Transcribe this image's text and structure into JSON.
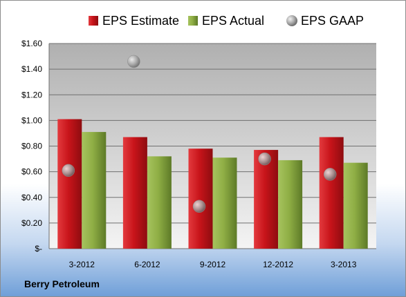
{
  "company": "Berry Petroleum",
  "chart_data": {
    "type": "bar",
    "title": "",
    "xlabel": "",
    "ylabel": "",
    "categories": [
      "3-2012",
      "6-2012",
      "9-2012",
      "12-2012",
      "3-2013"
    ],
    "series": [
      {
        "name": "EPS Estimate",
        "kind": "bar",
        "color": "#c8141a",
        "values": [
          1.01,
          0.87,
          0.78,
          0.77,
          0.87
        ]
      },
      {
        "name": "EPS Actual",
        "kind": "bar",
        "color": "#8fae45",
        "values": [
          0.91,
          0.72,
          0.71,
          0.69,
          0.67
        ]
      },
      {
        "name": "EPS GAAP",
        "kind": "marker",
        "color": "#a8a8a8",
        "values": [
          0.61,
          1.46,
          0.33,
          0.7,
          0.58
        ]
      }
    ],
    "yticks": [
      {
        "value": 0,
        "label": "$-"
      },
      {
        "value": 0.2,
        "label": "$0.20"
      },
      {
        "value": 0.4,
        "label": "$0.40"
      },
      {
        "value": 0.6,
        "label": "$0.60"
      },
      {
        "value": 0.8,
        "label": "$0.80"
      },
      {
        "value": 1.0,
        "label": "$1.00"
      },
      {
        "value": 1.2,
        "label": "$1.20"
      },
      {
        "value": 1.4,
        "label": "$1.40"
      },
      {
        "value": 1.6,
        "label": "$1.60"
      }
    ],
    "ylim": [
      0,
      1.6
    ],
    "grid": true,
    "legend": "top"
  }
}
